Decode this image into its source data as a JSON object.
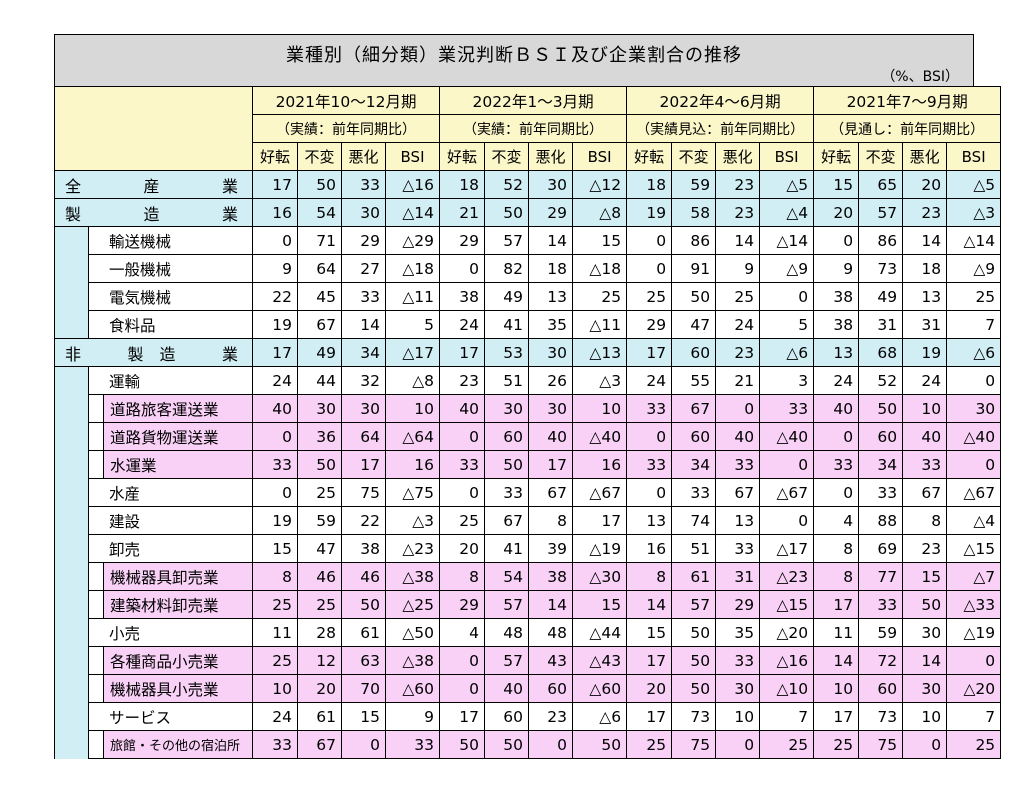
{
  "title": "業種別（細分類）業況判断ＢＳＩ及び企業割合の推移",
  "unit": "（%、BSI）",
  "periods": [
    {
      "label": "2021年10～12月期",
      "sub": "（実績：前年同期比）"
    },
    {
      "label": "2022年1～3月期",
      "sub": "（実績：前年同期比）"
    },
    {
      "label": "2022年4～6月期",
      "sub": "（実績見込：前年同期比）"
    },
    {
      "label": "2021年7～9月期",
      "sub": "（見通し：前年同期比）"
    }
  ],
  "cols": [
    "好転",
    "不変",
    "悪化",
    "BSI"
  ],
  "rows": [
    {
      "k": "top",
      "a": "全",
      "b": "産",
      "c": "業",
      "fill": "blue",
      "v": [
        "17",
        "50",
        "33",
        "△16",
        "18",
        "52",
        "30",
        "△12",
        "18",
        "59",
        "23",
        "△5",
        "15",
        "65",
        "20",
        "△5"
      ]
    },
    {
      "k": "top",
      "a": "製",
      "b": "造",
      "c": "業",
      "fill": "blue",
      "v": [
        "16",
        "54",
        "30",
        "△14",
        "21",
        "50",
        "29",
        "△8",
        "19",
        "58",
        "23",
        "△4",
        "20",
        "57",
        "23",
        "△3"
      ]
    },
    {
      "k": "l1",
      "name": "輸送機械",
      "fill": "white",
      "v": [
        "0",
        "71",
        "29",
        "△29",
        "29",
        "57",
        "14",
        "15",
        "0",
        "86",
        "14",
        "△14",
        "0",
        "86",
        "14",
        "△14"
      ]
    },
    {
      "k": "l1",
      "name": "一般機械",
      "fill": "white",
      "v": [
        "9",
        "64",
        "27",
        "△18",
        "0",
        "82",
        "18",
        "△18",
        "0",
        "91",
        "9",
        "△9",
        "9",
        "73",
        "18",
        "△9"
      ]
    },
    {
      "k": "l1",
      "name": "電気機械",
      "fill": "white",
      "v": [
        "22",
        "45",
        "33",
        "△11",
        "38",
        "49",
        "13",
        "25",
        "25",
        "50",
        "25",
        "0",
        "38",
        "49",
        "13",
        "25"
      ]
    },
    {
      "k": "l1",
      "name": "食料品",
      "fill": "white",
      "v": [
        "19",
        "67",
        "14",
        "5",
        "24",
        "41",
        "35",
        "△11",
        "29",
        "47",
        "24",
        "5",
        "38",
        "31",
        "31",
        "7"
      ]
    },
    {
      "k": "top",
      "a": "非",
      "b": "製　造",
      "c": "業",
      "fill": "blue",
      "v": [
        "17",
        "49",
        "34",
        "△17",
        "17",
        "53",
        "30",
        "△13",
        "17",
        "60",
        "23",
        "△6",
        "13",
        "68",
        "19",
        "△6"
      ]
    },
    {
      "k": "l1",
      "name": "運輸",
      "fill": "white",
      "v": [
        "24",
        "44",
        "32",
        "△8",
        "23",
        "51",
        "26",
        "△3",
        "24",
        "55",
        "21",
        "3",
        "24",
        "52",
        "24",
        "0"
      ]
    },
    {
      "k": "l2",
      "name": "道路旅客運送業",
      "fill": "pink",
      "v": [
        "40",
        "30",
        "30",
        "10",
        "40",
        "30",
        "30",
        "10",
        "33",
        "67",
        "0",
        "33",
        "40",
        "50",
        "10",
        "30"
      ]
    },
    {
      "k": "l2",
      "name": "道路貨物運送業",
      "fill": "pink",
      "v": [
        "0",
        "36",
        "64",
        "△64",
        "0",
        "60",
        "40",
        "△40",
        "0",
        "60",
        "40",
        "△40",
        "0",
        "60",
        "40",
        "△40"
      ]
    },
    {
      "k": "l2",
      "name": "水運業",
      "fill": "pink",
      "v": [
        "33",
        "50",
        "17",
        "16",
        "33",
        "50",
        "17",
        "16",
        "33",
        "34",
        "33",
        "0",
        "33",
        "34",
        "33",
        "0"
      ]
    },
    {
      "k": "l1",
      "name": "水産",
      "fill": "white",
      "v": [
        "0",
        "25",
        "75",
        "△75",
        "0",
        "33",
        "67",
        "△67",
        "0",
        "33",
        "67",
        "△67",
        "0",
        "33",
        "67",
        "△67"
      ]
    },
    {
      "k": "l1",
      "name": "建設",
      "fill": "white",
      "v": [
        "19",
        "59",
        "22",
        "△3",
        "25",
        "67",
        "8",
        "17",
        "13",
        "74",
        "13",
        "0",
        "4",
        "88",
        "8",
        "△4"
      ]
    },
    {
      "k": "l1",
      "name": "卸売",
      "fill": "white",
      "v": [
        "15",
        "47",
        "38",
        "△23",
        "20",
        "41",
        "39",
        "△19",
        "16",
        "51",
        "33",
        "△17",
        "8",
        "69",
        "23",
        "△15"
      ]
    },
    {
      "k": "l2",
      "name": "機械器具卸売業",
      "fill": "pink",
      "v": [
        "8",
        "46",
        "46",
        "△38",
        "8",
        "54",
        "38",
        "△30",
        "8",
        "61",
        "31",
        "△23",
        "8",
        "77",
        "15",
        "△7"
      ]
    },
    {
      "k": "l2",
      "name": "建築材料卸売業",
      "fill": "pink",
      "v": [
        "25",
        "25",
        "50",
        "△25",
        "29",
        "57",
        "14",
        "15",
        "14",
        "57",
        "29",
        "△15",
        "17",
        "33",
        "50",
        "△33"
      ]
    },
    {
      "k": "l1",
      "name": "小売",
      "fill": "white",
      "v": [
        "11",
        "28",
        "61",
        "△50",
        "4",
        "48",
        "48",
        "△44",
        "15",
        "50",
        "35",
        "△20",
        "11",
        "59",
        "30",
        "△19"
      ]
    },
    {
      "k": "l2",
      "name": "各種商品小売業",
      "fill": "pink",
      "v": [
        "25",
        "12",
        "63",
        "△38",
        "0",
        "57",
        "43",
        "△43",
        "17",
        "50",
        "33",
        "△16",
        "14",
        "72",
        "14",
        "0"
      ]
    },
    {
      "k": "l2",
      "name": "機械器具小売業",
      "fill": "pink",
      "v": [
        "10",
        "20",
        "70",
        "△60",
        "0",
        "40",
        "60",
        "△60",
        "20",
        "50",
        "30",
        "△10",
        "10",
        "60",
        "30",
        "△20"
      ]
    },
    {
      "k": "l1",
      "name": "サービス",
      "fill": "white",
      "v": [
        "24",
        "61",
        "15",
        "9",
        "17",
        "60",
        "23",
        "△6",
        "17",
        "73",
        "10",
        "7",
        "17",
        "73",
        "10",
        "7"
      ]
    },
    {
      "k": "l2",
      "name": "旅館・その他の宿泊所",
      "fill": "pink",
      "small": true,
      "v": [
        "33",
        "67",
        "0",
        "33",
        "50",
        "50",
        "0",
        "50",
        "25",
        "75",
        "0",
        "25",
        "25",
        "75",
        "0",
        "25"
      ]
    }
  ]
}
